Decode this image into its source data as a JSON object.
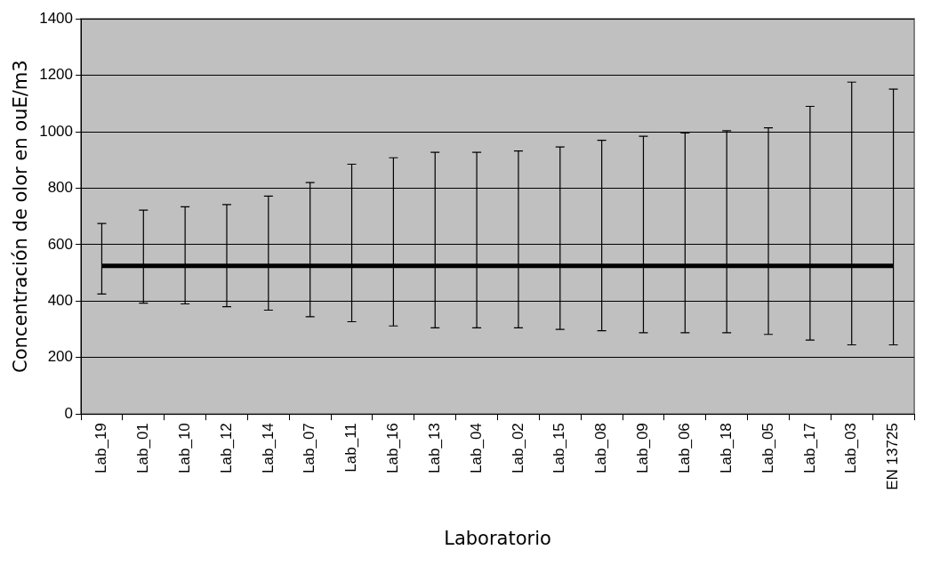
{
  "chart_data": {
    "type": "line",
    "xlabel": "Laboratorio",
    "ylabel": "Concentración de olor en ouE/m3",
    "categories": [
      "Lab_19",
      "Lab_01",
      "Lab_10",
      "Lab_12",
      "Lab_14",
      "Lab_07",
      "Lab_11",
      "Lab_16",
      "Lab_13",
      "Lab_04",
      "Lab_02",
      "Lab_15",
      "Lab_08",
      "Lab_09",
      "Lab_06",
      "Lab_18",
      "Lab_05",
      "Lab_17",
      "Lab_03",
      "EN 13725"
    ],
    "series": [
      {
        "color": "#000000",
        "values": [
          525,
          525,
          525,
          525,
          525,
          525,
          525,
          525,
          525,
          525,
          525,
          525,
          525,
          525,
          525,
          525,
          525,
          525,
          525,
          525
        ],
        "errors": [
          [
            425,
            675
          ],
          [
            393,
            722
          ],
          [
            390,
            734
          ],
          [
            380,
            742
          ],
          [
            368,
            772
          ],
          [
            345,
            820
          ],
          [
            327,
            885
          ],
          [
            312,
            908
          ],
          [
            305,
            927
          ],
          [
            305,
            927
          ],
          [
            305,
            932
          ],
          [
            300,
            946
          ],
          [
            295,
            970
          ],
          [
            288,
            984
          ],
          [
            288,
            996
          ],
          [
            288,
            1004
          ],
          [
            282,
            1014
          ],
          [
            262,
            1090
          ],
          [
            245,
            1176
          ],
          [
            245,
            1151
          ]
        ]
      }
    ],
    "ylim": [
      0,
      1400
    ],
    "yticks": [
      0,
      200,
      400,
      600,
      800,
      1000,
      1200,
      1400
    ],
    "grid": "y",
    "legend": false,
    "marker": "none",
    "line_style": "solid"
  }
}
